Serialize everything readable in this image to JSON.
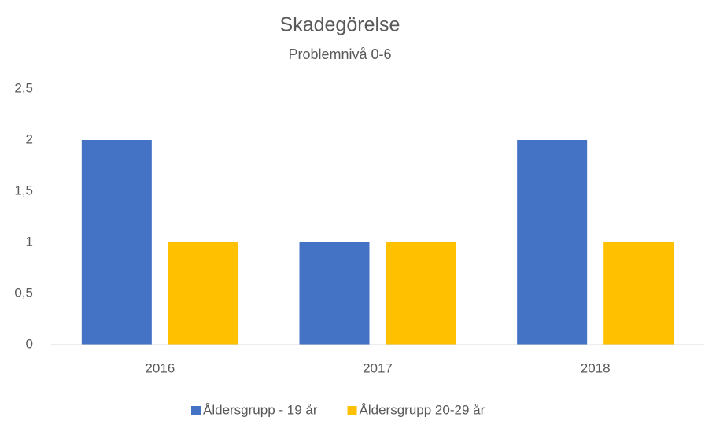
{
  "chart_data": {
    "type": "bar",
    "title": "Skadegörelse",
    "subtitle": "Problemnivå 0-6",
    "categories": [
      "2016",
      "2017",
      "2018"
    ],
    "series": [
      {
        "name": "Åldersgrupp - 19 år",
        "color": "#4472c4",
        "values": [
          2,
          1,
          2
        ]
      },
      {
        "name": "Åldersgrupp 20-29 år",
        "color": "#ffc000",
        "values": [
          1,
          1,
          1
        ]
      }
    ],
    "ylim": [
      0,
      2.5
    ],
    "yticks": [
      0,
      {
        "value": 0.5,
        "label": "0,5"
      },
      1,
      {
        "value": 1.5,
        "label": "1,5"
      },
      2,
      {
        "value": 2.5,
        "label": "2,5"
      }
    ],
    "grid": false,
    "legend": "bottom"
  }
}
